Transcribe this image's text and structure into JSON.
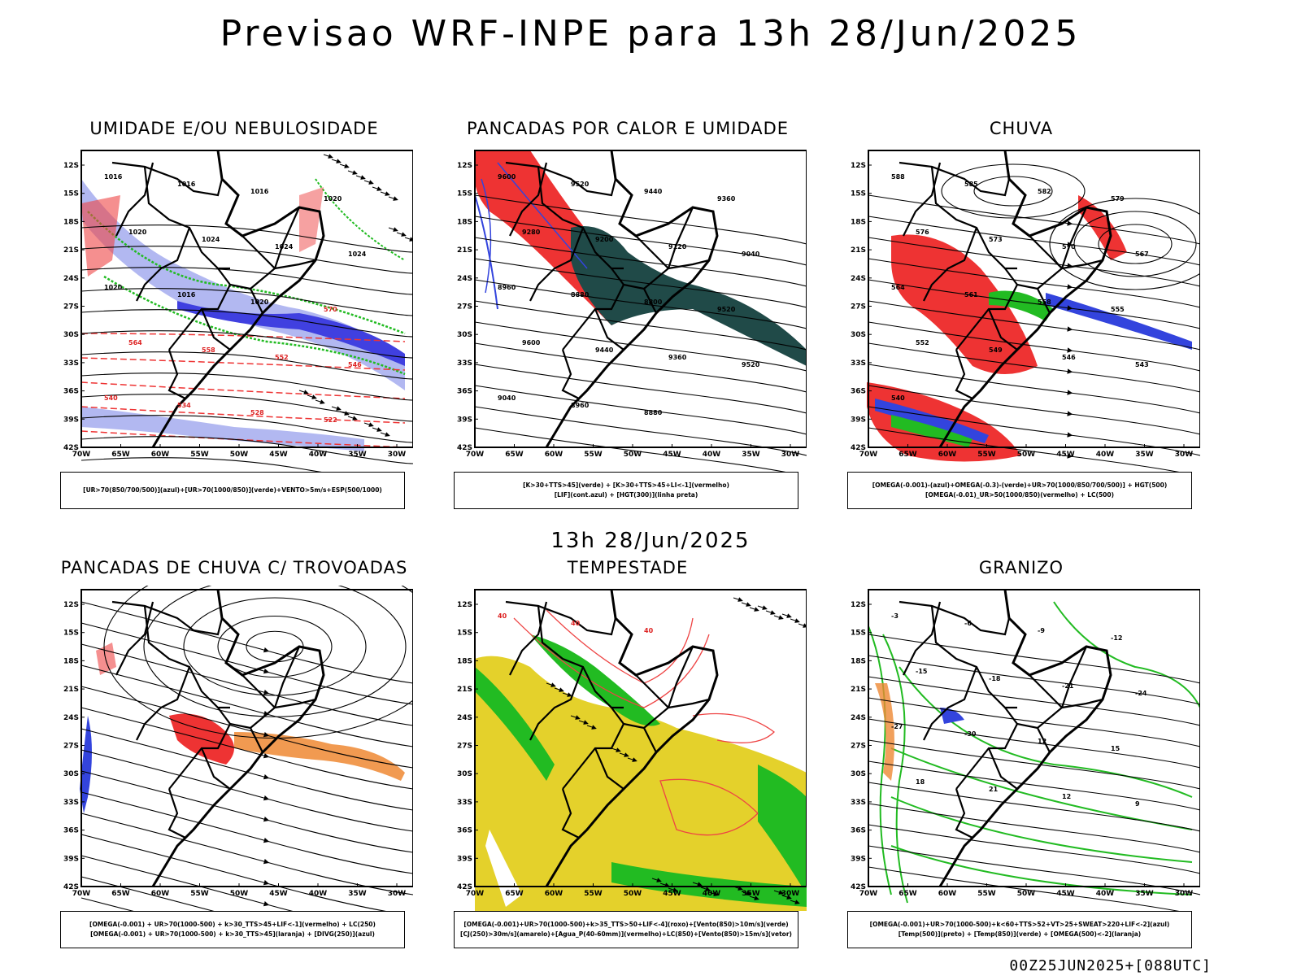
{
  "title": "Previsao WRF-INPE  para 13h 28/Jun/2025",
  "mid_title": "13h 28/Jun/2025",
  "footer": "00Z25JUN2025+[088UTC]",
  "lat_labels": [
    "12S",
    "15S",
    "18S",
    "21S",
    "24S",
    "27S",
    "30S",
    "33S",
    "36S",
    "39S",
    "42S"
  ],
  "lon_labels": [
    "70W",
    "65W",
    "60W",
    "55W",
    "50W",
    "45W",
    "40W",
    "35W",
    "30W"
  ],
  "panels": [
    {
      "title": "UMIDADE E/OU NEBULOSIDADE",
      "legend": [
        "[UR>70(850/700/500)](azul)+[UR>70(1000/850)](verde)+VENTO>5m/s+ESP(500/1000)"
      ],
      "labels": [
        "1016",
        "1016",
        "1016",
        "1020",
        "1020",
        "1024",
        "1024",
        "1024",
        "1020",
        "1016",
        "1020",
        "570",
        "564",
        "558",
        "552",
        "546",
        "540",
        "534",
        "528",
        "522"
      ]
    },
    {
      "title": "PANCADAS POR CALOR E UMIDADE",
      "legend": [
        "[K>30+TTS>45](verde) + [K>30+TTS>45+LI<-1](vermelho)",
        "[LIF](cont.azul) + [HGT(300)](linha preta)"
      ],
      "labels": [
        "9600",
        "9520",
        "9440",
        "9360",
        "9280",
        "9200",
        "9120",
        "9040",
        "8960",
        "8880",
        "8800",
        "9520",
        "9600",
        "9440",
        "9360",
        "9520",
        "9040",
        "8960",
        "8880"
      ]
    },
    {
      "title": "CHUVA",
      "legend": [
        "[OMEGA(-0.001)-(azul)+OMEGA(-0.3)-(verde)+UR>70(1000/850/700/500)] + HGT(500)",
        "[OMEGA(-0.01)_UR>50(1000/850)(vermelho) + LC(500)"
      ],
      "labels": [
        "588",
        "585",
        "582",
        "579",
        "576",
        "573",
        "570",
        "567",
        "564",
        "561",
        "558",
        "555",
        "552",
        "549",
        "546",
        "543",
        "540"
      ]
    },
    {
      "title": "PANCADAS DE CHUVA C/ TROVOADAS",
      "legend": [
        "[OMEGA(-0.001) + UR>70(1000-500) + k>30_TTS>45+LIF<-1](vermelho) + LC(250)",
        "[OMEGA(-0.001) + UR>70(1000-500) + k>30_TTS>45](laranja) + [DIVG(250)](azul)"
      ],
      "labels": []
    },
    {
      "title": "TEMPESTADE",
      "legend": [
        "[OMEGA(-0.001)+UR>70(1000-500)+k>35_TTS>50+LIF<-4](roxo)+[Vento(850)>10m/s](verde)",
        "[CJ(250)>30m/s](amarelo)+[Agua_P(40-60mm)](vermelho)+LC(850)+[Vento(850)>15m/s](vetor)"
      ],
      "labels": [
        "40",
        "40",
        "40"
      ]
    },
    {
      "title": "GRANIZO",
      "legend": [
        "[OMEGA(-0.001)+UR>70(1000-500)+k<60+TTS>52+VT>25+SWEAT>220+LIF<-2](azul)",
        "[Temp(500)](preto) + [Temp(850)](verde) + [OMEGA(500)<-2](laranja)"
      ],
      "labels": [
        "-3",
        "-6",
        "-9",
        "-12",
        "-15",
        "-18",
        "-21",
        "-24",
        "-27",
        "-30",
        "12",
        "15",
        "18",
        "21",
        "12",
        "9"
      ]
    }
  ]
}
